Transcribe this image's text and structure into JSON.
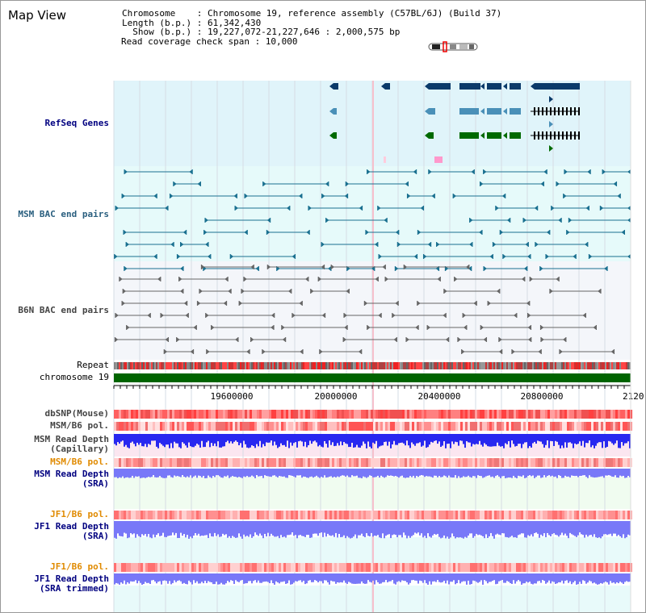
{
  "page_title": "Map View",
  "header": {
    "chromosome_line": "Chromosome    : Chromosome 19, reference assembly (C57BL/6J) (Build 37)",
    "length_line": "Length (b.p.) : 61,342,430",
    "show_line": "  Show (b.p.) : 19,227,072-21,227,646 : 2,000,575 bp",
    "span_line": "Read coverage check span : 10,000"
  },
  "tracks": {
    "refseq": "RefSeq Genes",
    "msm_bac": "MSM BAC end pairs",
    "b6n_bac": "B6N BAC end pairs",
    "repeat": "Repeat",
    "chromosome": "chromosome 19",
    "dbsnp": "dbSNP(Mouse)",
    "msm_b6_pol": "MSM/B6 pol.",
    "msm_depth_cap_1": "MSM Read Depth",
    "msm_depth_cap_2": "(Capillary)",
    "msm_b6_pol_2": "MSM/B6 pol.",
    "msm_depth_sra_1": "MSM Read Depth",
    "msm_depth_sra_2": "(SRA)",
    "jf1_b6_pol": "JF1/B6 pol.",
    "jf1_depth_sra_1": "JF1 Read Depth",
    "jf1_depth_sra_2": "(SRA)",
    "jf1_b6_pol_2": "JF1/B6 pol.",
    "jf1_depth_trim_1": "JF1 Read Depth",
    "jf1_depth_trim_2": "(SRA trimmed)"
  },
  "axis": {
    "ticks": [
      "19600000",
      "20000000",
      "20400000",
      "20800000",
      "2120"
    ]
  },
  "colors": {
    "refseq_bg": "#e0f4fa",
    "msm_bg": "#e6fafa",
    "b6n_bg": "#f4f6fa",
    "gene_navy": "#0a3a6a",
    "gene_teal": "#4a90b8",
    "gene_green": "#006a00",
    "chromosome": "#006400",
    "depth_blue": "#2828f0",
    "depth_light": "#7878f8"
  }
}
